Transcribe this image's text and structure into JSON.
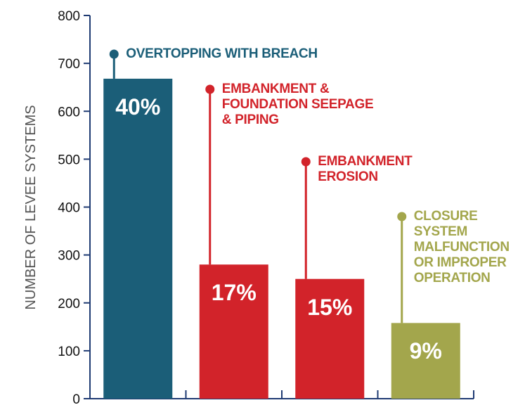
{
  "chart_data": {
    "type": "bar",
    "y_label": "NUMBER OF LEVEE SYSTEMS",
    "categories": [
      "OVERTOPPING WITH BREACH",
      "EMBANKMENT &\nFOUNDATION SEEPAGE\n& PIPING",
      "EMBANKMENT\nEROSION",
      "CLOSURE\nSYSTEM\nMALFUNCTION\nOR IMPROPER\nOPERATION"
    ],
    "values": [
      668,
      280,
      250,
      158
    ],
    "percent_labels": [
      "40%",
      "17%",
      "15%",
      "9%"
    ],
    "colors": [
      "#1b5e78",
      "#d2232a",
      "#d2232a",
      "#a3a64c"
    ],
    "ylim": [
      0,
      800
    ],
    "yticks": [
      0,
      100,
      200,
      300,
      400,
      500,
      600,
      700,
      800
    ],
    "grid": false
  }
}
